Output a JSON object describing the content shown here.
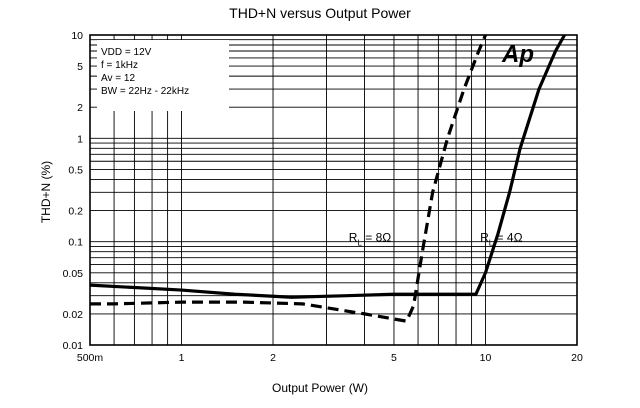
{
  "chart_data": {
    "type": "line",
    "title": "THD+N versus Output Power",
    "xlabel": "Output Power (W)",
    "ylabel": "THD+N (%)",
    "xscale": "log",
    "yscale": "log",
    "xlim": [
      0.5,
      20
    ],
    "ylim": [
      0.01,
      10
    ],
    "grid": true,
    "x_tick_labels": [
      "500m",
      "1",
      "2",
      "5",
      "10",
      "20"
    ],
    "y_tick_labels": [
      "10",
      "5",
      "2",
      "1",
      "0.5",
      "0.2",
      "0.1",
      "0.05",
      "0.02",
      "0.01"
    ],
    "conditions": [
      "VDD = 12V",
      "f = 1kHz",
      "Av = 12",
      "BW = 22Hz - 22kHz"
    ],
    "logo_text": "Ap",
    "series": [
      {
        "label_main": "R",
        "label_sub": "L",
        "label_rest": " = 4Ω",
        "style": "solid",
        "color": "#000000",
        "x": [
          0.5,
          0.7,
          1.0,
          1.5,
          2.3,
          3.5,
          5.0,
          7.0,
          8.5,
          9.3,
          10.0,
          11.0,
          12.0,
          13.0,
          15.0,
          17.0,
          18.2
        ],
        "y": [
          0.038,
          0.036,
          0.034,
          0.031,
          0.029,
          0.03,
          0.031,
          0.031,
          0.031,
          0.031,
          0.05,
          0.12,
          0.3,
          0.8,
          3.0,
          7.0,
          10.0
        ]
      },
      {
        "label_main": "R",
        "label_sub": "L",
        "label_rest": " = 8Ω",
        "style": "dashed",
        "color": "#000000",
        "x": [
          0.5,
          0.6,
          1.0,
          1.6,
          2.5,
          4.0,
          5.5,
          5.8,
          6.2,
          6.7,
          7.5,
          8.5,
          9.5,
          10.0
        ],
        "y": [
          0.025,
          0.025,
          0.026,
          0.026,
          0.025,
          0.02,
          0.017,
          0.024,
          0.08,
          0.3,
          1.0,
          3.0,
          7.0,
          10.0
        ]
      }
    ]
  }
}
